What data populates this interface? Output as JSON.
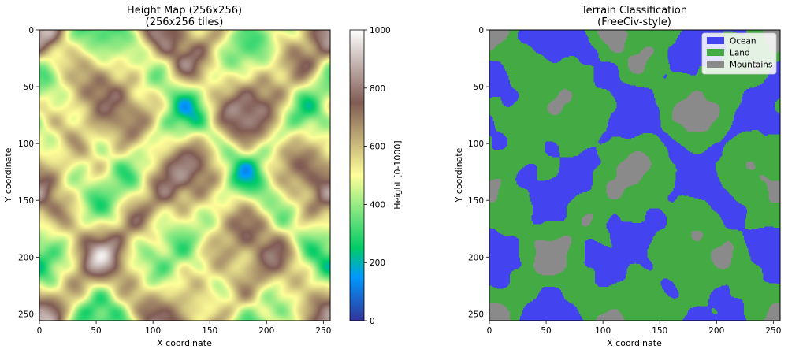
{
  "chart_data": [
    {
      "type": "heatmap",
      "title": "Height Map (256x256)",
      "subtitle": "(256x256 tiles)",
      "xlabel": "X coordinate",
      "ylabel": "Y coordinate",
      "xlim": [
        0,
        256
      ],
      "ylim": [
        256,
        0
      ],
      "xticks": [
        0,
        50,
        100,
        150,
        200,
        250
      ],
      "yticks": [
        0,
        50,
        100,
        150,
        200,
        250
      ],
      "colorbar": {
        "label": "Height [0-1000]",
        "range": [
          0,
          1000
        ],
        "ticks": [
          0,
          200,
          400,
          600,
          800,
          1000
        ],
        "colormap": "terrain"
      },
      "grid": false
    },
    {
      "type": "heatmap",
      "title": "Terrain Classification",
      "subtitle": "(FreeCiv-style)",
      "xlabel": "X coordinate",
      "ylabel": "Y coordinate",
      "xlim": [
        0,
        256
      ],
      "ylim": [
        256,
        0
      ],
      "xticks": [
        0,
        50,
        100,
        150,
        200,
        250
      ],
      "yticks": [
        0,
        50,
        100,
        150,
        200,
        250
      ],
      "legend": {
        "placement": "top-right",
        "entries": [
          {
            "label": "Ocean",
            "color": "#4343f0"
          },
          {
            "label": "Land",
            "color": "#44aa44"
          },
          {
            "label": "Mountains",
            "color": "#8a8a8a"
          }
        ]
      },
      "grid": false
    }
  ]
}
